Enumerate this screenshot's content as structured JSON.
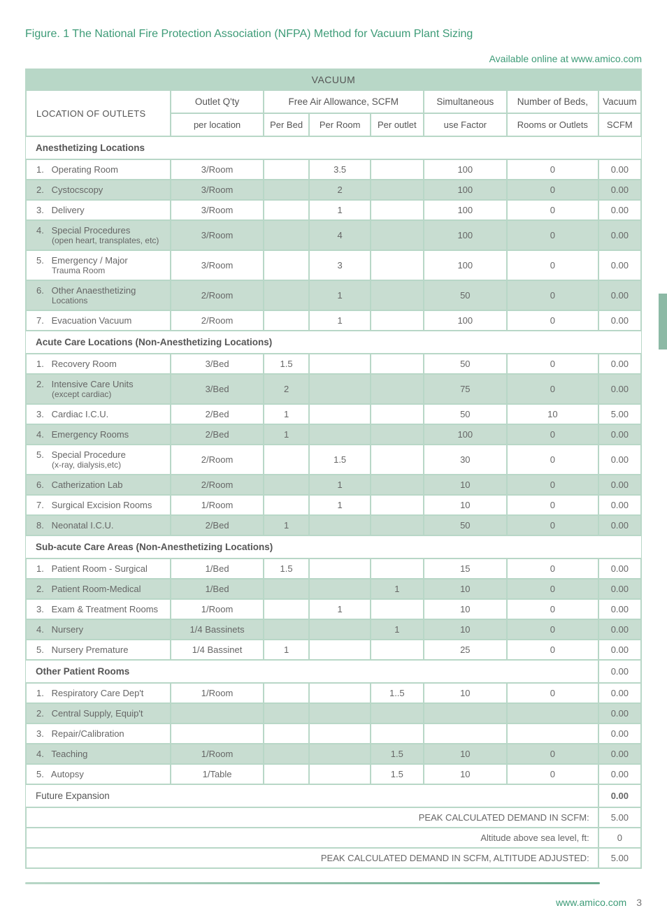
{
  "colors": {
    "accent": "#3d9b77",
    "cell_green": "#b8d7c7",
    "alt_green": "#c8ddd1",
    "text": "#4a4a4a",
    "muted": "#666666"
  },
  "figure_title": "Figure. 1 The National Fire Protection Association (NFPA) Method for Vacuum Plant Sizing",
  "online_note": "Available online at www.amico.com",
  "table_title": "VACUUM",
  "header1": {
    "location": "LOCATION OF OUTLETS",
    "qty": "Outlet Q'ty",
    "allowance": "Free Air Allowance, SCFM",
    "sim": "Simultaneous",
    "num": "Number of Beds,",
    "vac": "Vacuum"
  },
  "header2": {
    "qty": "per location",
    "pb": "Per Bed",
    "pr": "Per Room",
    "po": "Per outlet",
    "sim": "use Factor",
    "num": "Rooms or Outlets",
    "vac": "SCFM"
  },
  "sections": [
    {
      "title": "Anesthetizing Locations",
      "rows": [
        {
          "n": "1.",
          "name": "Operating Room",
          "qty": "3/Room",
          "pb": "",
          "pr": "3.5",
          "po": "",
          "sim": "100",
          "num": "0",
          "vac": "0.00",
          "alt": false
        },
        {
          "n": "2.",
          "name": "Cystocscopy",
          "qty": "3/Room",
          "pb": "",
          "pr": "2",
          "po": "",
          "sim": "100",
          "num": "0",
          "vac": "0.00",
          "alt": true
        },
        {
          "n": "3.",
          "name": "Delivery",
          "qty": "3/Room",
          "pb": "",
          "pr": "1",
          "po": "",
          "sim": "100",
          "num": "0",
          "vac": "0.00",
          "alt": false
        },
        {
          "n": "4.",
          "name": "Special Procedures",
          "sub": "(open heart, transplates, etc)",
          "qty": "3/Room",
          "pb": "",
          "pr": "4",
          "po": "",
          "sim": "100",
          "num": "0",
          "vac": "0.00",
          "alt": true
        },
        {
          "n": "5.",
          "name": "Emergency / Major",
          "sub": "Trauma Room",
          "qty": "3/Room",
          "pb": "",
          "pr": "3",
          "po": "",
          "sim": "100",
          "num": "0",
          "vac": "0.00",
          "alt": false
        },
        {
          "n": "6.",
          "name": "Other Anaesthetizing",
          "sub": "Locations",
          "qty": "2/Room",
          "pb": "",
          "pr": "1",
          "po": "",
          "sim": "50",
          "num": "0",
          "vac": "0.00",
          "alt": true
        },
        {
          "n": "7.",
          "name": "Evacuation Vacuum",
          "qty": "2/Room",
          "pb": "",
          "pr": "1",
          "po": "",
          "sim": "100",
          "num": "0",
          "vac": "0.00",
          "alt": false
        }
      ]
    },
    {
      "title": "Acute Care Locations (Non-Anesthetizing Locations)",
      "rows": [
        {
          "n": "1.",
          "name": "Recovery Room",
          "qty": "3/Bed",
          "pb": "1.5",
          "pr": "",
          "po": "",
          "sim": "50",
          "num": "0",
          "vac": "0.00",
          "alt": false
        },
        {
          "n": "2.",
          "name": "Intensive Care Units",
          "sub": "(except cardiac)",
          "qty": "3/Bed",
          "pb": "2",
          "pr": "",
          "po": "",
          "sim": "75",
          "num": "0",
          "vac": "0.00",
          "alt": true
        },
        {
          "n": "3.",
          "name": "Cardiac I.C.U.",
          "qty": "2/Bed",
          "pb": "1",
          "pr": "",
          "po": "",
          "sim": "50",
          "num": "10",
          "vac": "5.00",
          "alt": false
        },
        {
          "n": "4.",
          "name": "Emergency Rooms",
          "qty": "2/Bed",
          "pb": "1",
          "pr": "",
          "po": "",
          "sim": "100",
          "num": "0",
          "vac": "0.00",
          "alt": true
        },
        {
          "n": "5.",
          "name": "Special Procedure",
          "sub": "(x-ray, dialysis,etc)",
          "qty": "2/Room",
          "pb": "",
          "pr": "1.5",
          "po": "",
          "sim": "30",
          "num": "0",
          "vac": "0.00",
          "alt": false
        },
        {
          "n": "6.",
          "name": "Catherization Lab",
          "qty": "2/Room",
          "pb": "",
          "pr": "1",
          "po": "",
          "sim": "10",
          "num": "0",
          "vac": "0.00",
          "alt": true
        },
        {
          "n": "7.",
          "name": "Surgical Excision Rooms",
          "qty": "1/Room",
          "pb": "",
          "pr": "1",
          "po": "",
          "sim": "10",
          "num": "0",
          "vac": "0.00",
          "alt": false
        },
        {
          "n": "8.",
          "name": "Neonatal I.C.U.",
          "qty": "2/Bed",
          "pb": "1",
          "pr": "",
          "po": "",
          "sim": "50",
          "num": "0",
          "vac": "0.00",
          "alt": true
        }
      ]
    },
    {
      "title": "Sub-acute Care Areas (Non-Anesthetizing Locations)",
      "rows": [
        {
          "n": "1.",
          "name": "Patient Room - Surgical",
          "qty": "1/Bed",
          "pb": "1.5",
          "pr": "",
          "po": "",
          "sim": "15",
          "num": "0",
          "vac": "0.00",
          "alt": false
        },
        {
          "n": "2.",
          "name": "Patient Room-Medical",
          "qty": "1/Bed",
          "pb": "",
          "pr": "",
          "po": "1",
          "sim": "10",
          "num": "0",
          "vac": "0.00",
          "alt": true
        },
        {
          "n": "3.",
          "name": "Exam & Treatment Rooms",
          "qty": "1/Room",
          "pb": "",
          "pr": "1",
          "po": "",
          "sim": "10",
          "num": "0",
          "vac": "0.00",
          "alt": false
        },
        {
          "n": "4.",
          "name": "Nursery",
          "qty": "1/4 Bassinets",
          "pb": "",
          "pr": "",
          "po": "1",
          "sim": "10",
          "num": "0",
          "vac": "0.00",
          "alt": true
        },
        {
          "n": "5.",
          "name": "Nursery Premature",
          "qty": "1/4 Bassinet",
          "pb": "1",
          "pr": "",
          "po": "",
          "sim": "25",
          "num": "0",
          "vac": "0.00",
          "alt": false
        }
      ]
    },
    {
      "title": "Other Patient Rooms",
      "title_vac": "0.00",
      "rows": [
        {
          "n": "1.",
          "name": "Respiratory Care Dep't",
          "qty": "1/Room",
          "pb": "",
          "pr": "",
          "po": "1..5",
          "sim": "10",
          "num": "0",
          "vac": "0.00",
          "alt": false
        },
        {
          "n": "2.",
          "name": "Central Supply, Equip't",
          "qty": "",
          "pb": "",
          "pr": "",
          "po": "",
          "sim": "",
          "num": "",
          "vac": "0.00",
          "alt": true
        },
        {
          "n": "3.",
          "name": "Repair/Calibration",
          "qty": "",
          "pb": "",
          "pr": "",
          "po": "",
          "sim": "",
          "num": "",
          "vac": "0.00",
          "alt": false
        },
        {
          "n": "4.",
          "name": "Teaching",
          "qty": "1/Room",
          "pb": "",
          "pr": "",
          "po": "1.5",
          "sim": "10",
          "num": "0",
          "vac": "0.00",
          "alt": true
        },
        {
          "n": "5.",
          "name": "Autopsy",
          "qty": "1/Table",
          "pb": "",
          "pr": "",
          "po": "1.5",
          "sim": "10",
          "num": "0",
          "vac": "0.00",
          "alt": false
        }
      ]
    }
  ],
  "future_row": {
    "title": "Future Expansion",
    "vac": "0.00"
  },
  "summary": [
    {
      "label": "PEAK CALCULATED DEMAND IN SCFM:",
      "val": "5.00"
    },
    {
      "label": "Altitude above sea level, ft:",
      "val": "0"
    },
    {
      "label": "PEAK CALCULATED DEMAND IN SCFM, ALTITUDE ADJUSTED:",
      "val": "5.00"
    }
  ],
  "footer": {
    "url": "www.amico.com",
    "page": "3"
  }
}
